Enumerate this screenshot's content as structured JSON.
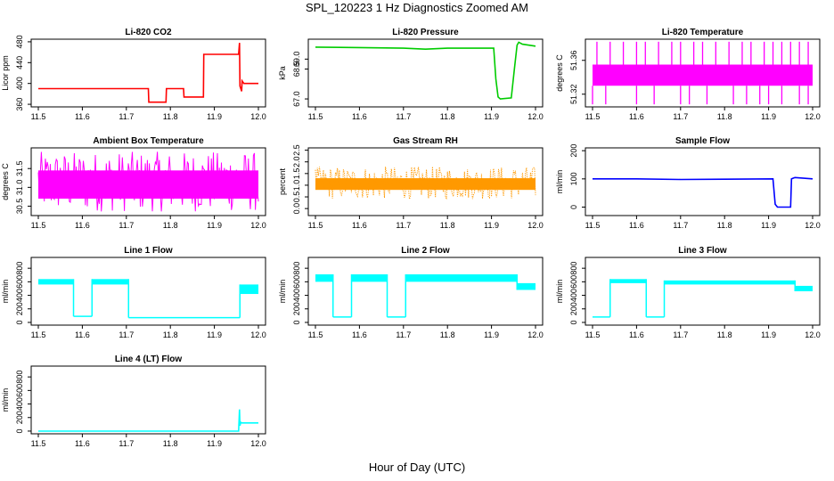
{
  "figure": {
    "title": "SPL_120223 1 Hz Diagnostics Zoomed AM",
    "xlabel": "Hour of Day (UTC)"
  },
  "chart_data": [
    {
      "type": "line",
      "title": "Li-820 CO2",
      "ylabel": "Licor ppm",
      "color": "#ff0000",
      "xlim": [
        11.5,
        12.0
      ],
      "ylim": [
        355,
        485
      ],
      "xticks": [
        "11.5",
        "11.6",
        "11.7",
        "11.8",
        "11.9",
        "12.0"
      ],
      "yticks": [
        360,
        400,
        440,
        480
      ],
      "yticklabels": [
        "360",
        "400",
        "440",
        "480"
      ],
      "x": [
        11.5,
        11.75,
        11.751,
        11.79,
        11.791,
        11.83,
        11.831,
        11.875,
        11.876,
        11.955,
        11.957,
        11.958,
        11.962,
        11.963,
        11.967,
        11.97,
        12.0
      ],
      "y": [
        390,
        390,
        364,
        364,
        390,
        390,
        374,
        374,
        456,
        456,
        478,
        395,
        385,
        405,
        400,
        400,
        400
      ]
    },
    {
      "type": "line",
      "title": "Li-820 Pressure",
      "ylabel": "kPa",
      "color": "#00cc00",
      "xlim": [
        11.5,
        12.0
      ],
      "ylim": [
        66.6,
        70.0
      ],
      "xticks": [
        "11.5",
        "11.6",
        "11.7",
        "11.8",
        "11.9",
        "12.0"
      ],
      "yticks": [
        67.0,
        68.5,
        69.0
      ],
      "yticklabels": [
        "67.0",
        "68.5",
        "69.0"
      ],
      "x": [
        11.5,
        11.6,
        11.7,
        11.75,
        11.8,
        11.85,
        11.905,
        11.91,
        11.915,
        11.92,
        11.945,
        11.952,
        11.958,
        11.962,
        11.97,
        12.0
      ],
      "y": [
        69.6,
        69.58,
        69.55,
        69.5,
        69.55,
        69.55,
        69.55,
        68.0,
        67.1,
        67.0,
        67.05,
        68.5,
        69.7,
        69.85,
        69.75,
        69.65
      ]
    },
    {
      "type": "line",
      "title": "Li-820 Temperature",
      "ylabel": "degrees C",
      "color": "#ff00ff",
      "xlim": [
        11.5,
        12.0
      ],
      "ylim": [
        51.305,
        51.385
      ],
      "xticks": [
        "11.5",
        "11.6",
        "11.7",
        "11.8",
        "11.9",
        "12.0"
      ],
      "yticks": [
        51.32,
        51.36
      ],
      "yticklabels": [
        "51.32",
        "51.36"
      ],
      "band": [
        51.33,
        51.355
      ],
      "spikes_up": [
        11.51,
        11.54,
        11.57,
        11.6,
        11.62,
        11.65,
        11.68,
        11.7,
        11.73,
        11.75,
        11.78,
        11.81,
        11.84,
        11.86,
        11.89,
        11.91,
        11.93,
        11.95,
        11.97,
        11.99
      ],
      "spikes_down": [
        11.5,
        11.53,
        11.6,
        11.64,
        11.7,
        11.72,
        11.76,
        11.82,
        11.85,
        11.88,
        11.9,
        11.93,
        11.97,
        11.99
      ]
    },
    {
      "type": "line",
      "title": "Ambient Box Temperature",
      "ylabel": "degrees C",
      "color": "#ff00ff",
      "xlim": [
        11.5,
        12.0
      ],
      "ylim": [
        30.25,
        32.05
      ],
      "xticks": [
        "11.5",
        "11.6",
        "11.7",
        "11.8",
        "11.9",
        "12.0"
      ],
      "yticks": [
        30.5,
        31.0,
        31.5
      ],
      "yticklabels": [
        "30.5",
        "31.0",
        "31.5"
      ],
      "band": [
        30.7,
        31.45
      ],
      "noise_range": [
        30.35,
        31.95
      ]
    },
    {
      "type": "scatter",
      "title": "Gas Stream RH",
      "ylabel": "percent",
      "color": "#ff9900",
      "xlim": [
        11.5,
        12.0
      ],
      "ylim": [
        -0.3,
        2.6
      ],
      "xticks": [
        "11.5",
        "11.6",
        "11.7",
        "11.8",
        "11.9",
        "12.0"
      ],
      "yticks": [
        0.0,
        0.5,
        1.0,
        1.5,
        2.0,
        2.5
      ],
      "yticklabels": [
        "0.0",
        "0.5",
        "1.0",
        "1.5",
        "2.0",
        "2.5"
      ],
      "band": [
        0.8,
        1.3
      ],
      "noise_range": [
        0.4,
        1.8
      ]
    },
    {
      "type": "line",
      "title": "Sample Flow",
      "ylabel": "ml/min",
      "color": "#0000ff",
      "xlim": [
        11.5,
        12.0
      ],
      "ylim": [
        -30,
        210
      ],
      "xticks": [
        "11.5",
        "11.6",
        "11.7",
        "11.8",
        "11.9",
        "12.0"
      ],
      "yticks": [
        0,
        100,
        200
      ],
      "yticklabels": [
        "0",
        "100",
        "200"
      ],
      "x": [
        11.5,
        11.6,
        11.7,
        11.8,
        11.91,
        11.915,
        11.92,
        11.95,
        11.952,
        11.96,
        12.0
      ],
      "y": [
        100,
        100,
        98,
        99,
        100,
        10,
        0,
        0,
        100,
        105,
        100
      ]
    },
    {
      "type": "line",
      "title": "Line 1 Flow",
      "ylabel": "ml/min",
      "color": "#00ffff",
      "xlim": [
        11.5,
        12.0
      ],
      "ylim": [
        -40,
        960
      ],
      "xticks": [
        "11.5",
        "11.6",
        "11.7",
        "11.8",
        "11.9",
        "12.0"
      ],
      "yticks": [
        0,
        200,
        400,
        600,
        800
      ],
      "yticklabels": [
        "0",
        "200",
        "400",
        "600",
        "800"
      ],
      "segments": [
        {
          "x0": 11.5,
          "x1": 11.58,
          "y0": 560,
          "y1": 640,
          "band": true
        },
        {
          "x0": 11.58,
          "x1": 11.622,
          "y0": 90,
          "y1": 90,
          "band": false
        },
        {
          "x0": 11.622,
          "x1": 11.705,
          "y0": 560,
          "y1": 640,
          "band": true
        },
        {
          "x0": 11.705,
          "x1": 11.958,
          "y0": 70,
          "y1": 70,
          "band": false
        },
        {
          "x0": 11.958,
          "x1": 12.0,
          "y0": 420,
          "y1": 560,
          "band": true
        }
      ]
    },
    {
      "type": "line",
      "title": "Line 2 Flow",
      "ylabel": "ml/min",
      "color": "#00ffff",
      "xlim": [
        11.5,
        12.0
      ],
      "ylim": [
        -40,
        960
      ],
      "xticks": [
        "11.5",
        "11.6",
        "11.7",
        "11.8",
        "11.9",
        "12.0"
      ],
      "yticks": [
        0,
        200,
        400,
        600,
        800
      ],
      "yticklabels": [
        "0",
        "200",
        "400",
        "600",
        "800"
      ],
      "segments": [
        {
          "x0": 11.5,
          "x1": 11.54,
          "y0": 600,
          "y1": 710,
          "band": true
        },
        {
          "x0": 11.54,
          "x1": 11.582,
          "y0": 80,
          "y1": 80,
          "band": false
        },
        {
          "x0": 11.582,
          "x1": 11.663,
          "y0": 600,
          "y1": 710,
          "band": true
        },
        {
          "x0": 11.663,
          "x1": 11.705,
          "y0": 80,
          "y1": 80,
          "band": false
        },
        {
          "x0": 11.705,
          "x1": 11.958,
          "y0": 600,
          "y1": 710,
          "band": true
        },
        {
          "x0": 11.958,
          "x1": 12.0,
          "y0": 480,
          "y1": 580,
          "band": true
        }
      ]
    },
    {
      "type": "line",
      "title": "Line 3 Flow",
      "ylabel": "ml/min",
      "color": "#00ffff",
      "xlim": [
        11.5,
        12.0
      ],
      "ylim": [
        -40,
        960
      ],
      "xticks": [
        "11.5",
        "11.6",
        "11.7",
        "11.8",
        "11.9",
        "12.0"
      ],
      "yticks": [
        0,
        200,
        400,
        600,
        800
      ],
      "yticklabels": [
        "0",
        "200",
        "400",
        "600",
        "800"
      ],
      "segments": [
        {
          "x0": 11.5,
          "x1": 11.54,
          "y0": 80,
          "y1": 80,
          "band": false
        },
        {
          "x0": 11.54,
          "x1": 11.622,
          "y0": 580,
          "y1": 640,
          "band": true
        },
        {
          "x0": 11.622,
          "x1": 11.663,
          "y0": 80,
          "y1": 80,
          "band": false
        },
        {
          "x0": 11.663,
          "x1": 11.96,
          "y0": 560,
          "y1": 620,
          "band": true
        },
        {
          "x0": 11.96,
          "x1": 12.0,
          "y0": 460,
          "y1": 540,
          "band": true
        }
      ]
    },
    {
      "type": "line",
      "title": "Line 4 (LT) Flow",
      "ylabel": "ml/min",
      "color": "#00ffff",
      "xlim": [
        11.5,
        12.0
      ],
      "ylim": [
        -40,
        960
      ],
      "xticks": [
        "11.5",
        "11.6",
        "11.7",
        "11.8",
        "11.9",
        "12.0"
      ],
      "yticks": [
        0,
        200,
        400,
        600,
        800
      ],
      "yticklabels": [
        "0",
        "200",
        "400",
        "600",
        "800"
      ],
      "x": [
        11.5,
        11.6,
        11.7,
        11.8,
        11.9,
        11.955,
        11.957,
        11.958,
        11.96,
        11.962,
        12.0
      ],
      "y": [
        0,
        0,
        0,
        0,
        0,
        0,
        320,
        80,
        130,
        120,
        120
      ]
    }
  ]
}
